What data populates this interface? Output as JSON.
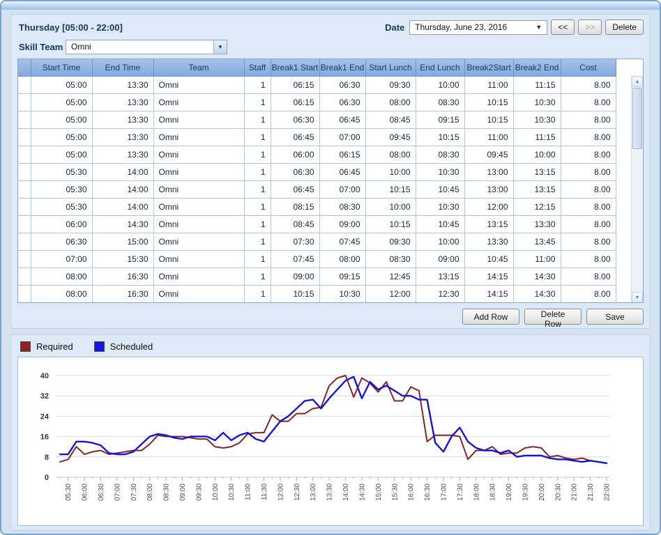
{
  "header": {
    "title": "Thursday [05:00 - 22:00]",
    "date_label": "Date",
    "date_value": "Thursday, June 23, 2016",
    "prev_label": "<<",
    "next_label": ">>",
    "delete_label": "Delete",
    "skill_team_label": "Skill Team",
    "skill_team_value": "Omni"
  },
  "table": {
    "columns": [
      "",
      "Start Time",
      "End Time",
      "Team",
      "Staff",
      "Break1 Start",
      "Break1 End",
      "Start Lunch",
      "End Lunch",
      "Break2Start",
      "Break2 End",
      "Cost"
    ],
    "rows": [
      [
        "05:00",
        "13:30",
        "Omni",
        "1",
        "06:15",
        "06:30",
        "09:30",
        "10:00",
        "11:00",
        "11:15",
        "8.00"
      ],
      [
        "05:00",
        "13:30",
        "Omni",
        "1",
        "06:15",
        "06:30",
        "08:00",
        "08:30",
        "10:15",
        "10:30",
        "8.00"
      ],
      [
        "05:00",
        "13:30",
        "Omni",
        "1",
        "06:30",
        "06:45",
        "08:45",
        "09:15",
        "10:15",
        "10:30",
        "8.00"
      ],
      [
        "05:00",
        "13:30",
        "Omni",
        "1",
        "06:45",
        "07:00",
        "09:45",
        "10:15",
        "11:00",
        "11:15",
        "8.00"
      ],
      [
        "05:00",
        "13:30",
        "Omni",
        "1",
        "06:00",
        "06:15",
        "08:00",
        "08:30",
        "09:45",
        "10:00",
        "8.00"
      ],
      [
        "05:30",
        "14:00",
        "Omni",
        "1",
        "06:30",
        "06:45",
        "10:00",
        "10:30",
        "13:00",
        "13:15",
        "8.00"
      ],
      [
        "05:30",
        "14:00",
        "Omni",
        "1",
        "06:45",
        "07:00",
        "10:15",
        "10:45",
        "13:00",
        "13:15",
        "8.00"
      ],
      [
        "05:30",
        "14:00",
        "Omni",
        "1",
        "08:15",
        "08:30",
        "10:00",
        "10:30",
        "12:00",
        "12:15",
        "8.00"
      ],
      [
        "06:00",
        "14:30",
        "Omni",
        "1",
        "08:45",
        "09:00",
        "10:15",
        "10:45",
        "13:15",
        "13:30",
        "8.00"
      ],
      [
        "06:30",
        "15:00",
        "Omni",
        "1",
        "07:30",
        "07:45",
        "09:30",
        "10:00",
        "13:30",
        "13:45",
        "8.00"
      ],
      [
        "07:00",
        "15:30",
        "Omni",
        "1",
        "07:45",
        "08:00",
        "08:30",
        "09:00",
        "10:45",
        "11:00",
        "8.00"
      ],
      [
        "08:00",
        "16:30",
        "Omni",
        "1",
        "09:00",
        "09:15",
        "12:45",
        "13:15",
        "14:15",
        "14:30",
        "8.00"
      ],
      [
        "08:00",
        "16:30",
        "Omni",
        "1",
        "10:15",
        "10:30",
        "12:00",
        "12:30",
        "14:15",
        "14:30",
        "8.00"
      ]
    ]
  },
  "actions": {
    "add_row": "Add Row",
    "delete_row": "Delete Row",
    "save": "Save"
  },
  "chart_data": {
    "type": "line",
    "title": "",
    "xlabel": "",
    "ylabel": "",
    "ylim": [
      0,
      44
    ],
    "yticks": [
      0,
      8,
      16,
      24,
      32,
      40
    ],
    "grid": true,
    "legend_position": "top-left",
    "x": [
      "05:15",
      "05:30",
      "05:45",
      "06:00",
      "06:15",
      "06:30",
      "06:45",
      "07:00",
      "07:15",
      "07:30",
      "07:45",
      "08:00",
      "08:15",
      "08:30",
      "08:45",
      "09:00",
      "09:15",
      "09:30",
      "09:45",
      "10:00",
      "10:15",
      "10:30",
      "10:45",
      "11:00",
      "11:15",
      "11:30",
      "11:45",
      "12:00",
      "12:15",
      "12:30",
      "12:45",
      "13:00",
      "13:15",
      "13:30",
      "13:45",
      "14:00",
      "14:15",
      "14:30",
      "14:45",
      "15:00",
      "15:15",
      "15:30",
      "15:45",
      "16:00",
      "16:15",
      "16:30",
      "16:45",
      "17:00",
      "17:15",
      "17:30",
      "17:45",
      "18:00",
      "18:15",
      "18:30",
      "18:45",
      "19:00",
      "19:15",
      "19:30",
      "19:45",
      "20:00",
      "20:15",
      "20:30",
      "20:45",
      "21:00",
      "21:15",
      "21:30",
      "21:45",
      "22:00"
    ],
    "x_major_tick_interval": "30min",
    "series": [
      {
        "name": "Required",
        "color": "#8b2323",
        "values": [
          6,
          7,
          12,
          9,
          10,
          10.5,
          9,
          9.5,
          10,
          10.5,
          10.5,
          13,
          16.5,
          16,
          16,
          16,
          15.5,
          15,
          15,
          12,
          11.5,
          12,
          13.5,
          17,
          17.5,
          17.5,
          24.5,
          22,
          22,
          25,
          25,
          27,
          27.5,
          36,
          39,
          40,
          31.5,
          39,
          37,
          33.5,
          37.5,
          30,
          30,
          35.5,
          34,
          14,
          16.5,
          16.5,
          16.5,
          16,
          7,
          10.5,
          10.5,
          12,
          9,
          9.5,
          9.5,
          11.5,
          12,
          11.5,
          8,
          8.5,
          7.5,
          7,
          7.5,
          6.5,
          6,
          5.5
        ]
      },
      {
        "name": "Scheduled",
        "color": "#1414e0",
        "values": [
          9,
          9,
          14,
          14,
          13.5,
          12.5,
          9.5,
          9,
          9,
          10,
          13,
          16,
          17,
          16.5,
          15.5,
          15,
          16,
          16,
          16,
          14.5,
          17.5,
          14.5,
          16.5,
          17.5,
          15,
          14,
          18,
          22,
          24,
          27,
          30,
          30.5,
          27,
          31,
          34.5,
          38,
          39.5,
          31,
          37.5,
          34.5,
          36,
          34,
          32,
          32,
          30.5,
          30.5,
          13.5,
          10,
          16,
          19.5,
          14,
          11.5,
          10.5,
          10.5,
          9.5,
          10.5,
          8,
          8.5,
          8.5,
          8.5,
          7.5,
          7,
          7,
          6.5,
          6,
          6.5,
          6,
          5.5
        ]
      }
    ]
  }
}
